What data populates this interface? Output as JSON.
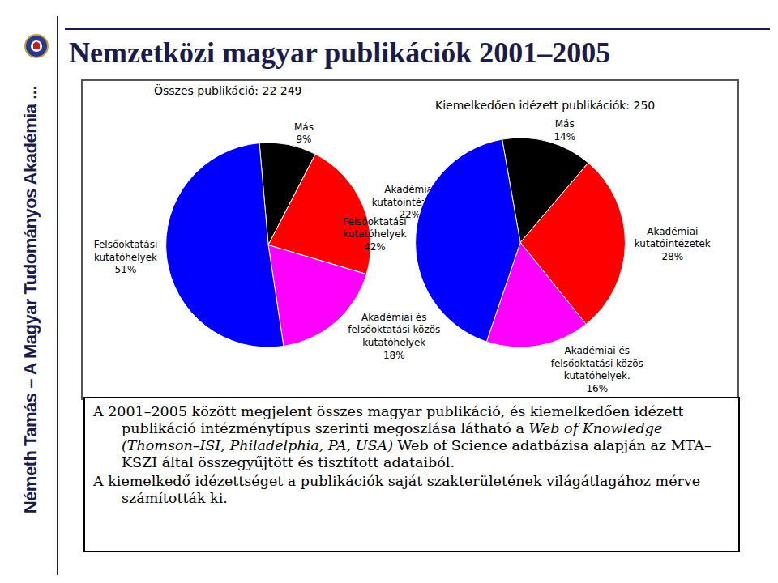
{
  "page": {
    "title": "Nemzetközi magyar publikációk 2001–2005",
    "side_text": "Németh Tamás – A Magyar Tudományos Akadémia ...",
    "caption": [
      [
        {
          "text": "A 2001–2005 között megjelent összes magyar publikáció, és kiemelkedően idézett publikáció intézménytípus szerinti megoszlása látható a "
        },
        {
          "text": "Web of Knowledge (Thomson–ISI, Philadelphia, PA, USA)",
          "italic": true
        },
        {
          "text": " Web of Science adatbázisa alapján az MTA–KSZI által összegyűjtött és tisztított adataiból."
        }
      ],
      [
        {
          "text": "A kiemelkedő idézettséget a publikációk saját szakterületének világátlagához mérve számították ki."
        }
      ]
    ]
  },
  "chart_data": [
    {
      "type": "pie",
      "title": "Összes publikáció: 22 249",
      "categories": [
        "Más",
        "Akadémiai kutatóintézetek",
        "Akadémiai és felsőoktatási közös kutatóhelyek",
        "Felsőoktatási kutatóhelyek"
      ],
      "values": [
        9,
        22,
        18,
        51
      ],
      "value_labels": [
        "9%",
        "22%",
        "18%",
        "51%"
      ],
      "colors": [
        "#000000",
        "#ff0000",
        "#ff00ff",
        "#0000ff"
      ],
      "data_labels": true
    },
    {
      "type": "pie",
      "title": "Kiemelkedően idézett publikációk: 250",
      "categories": [
        "Más",
        "Akadémiai kutatóintézetek",
        "Akadémiai és felsőoktatási közös kutatóhelyek.",
        "Felsőoktatási kutatóhelyek"
      ],
      "values": [
        14,
        28,
        16,
        42
      ],
      "value_labels": [
        "14%",
        "28%",
        "16%",
        "42%"
      ],
      "colors": [
        "#000000",
        "#ff0000",
        "#ff00ff",
        "#0000ff"
      ],
      "data_labels": true
    }
  ]
}
